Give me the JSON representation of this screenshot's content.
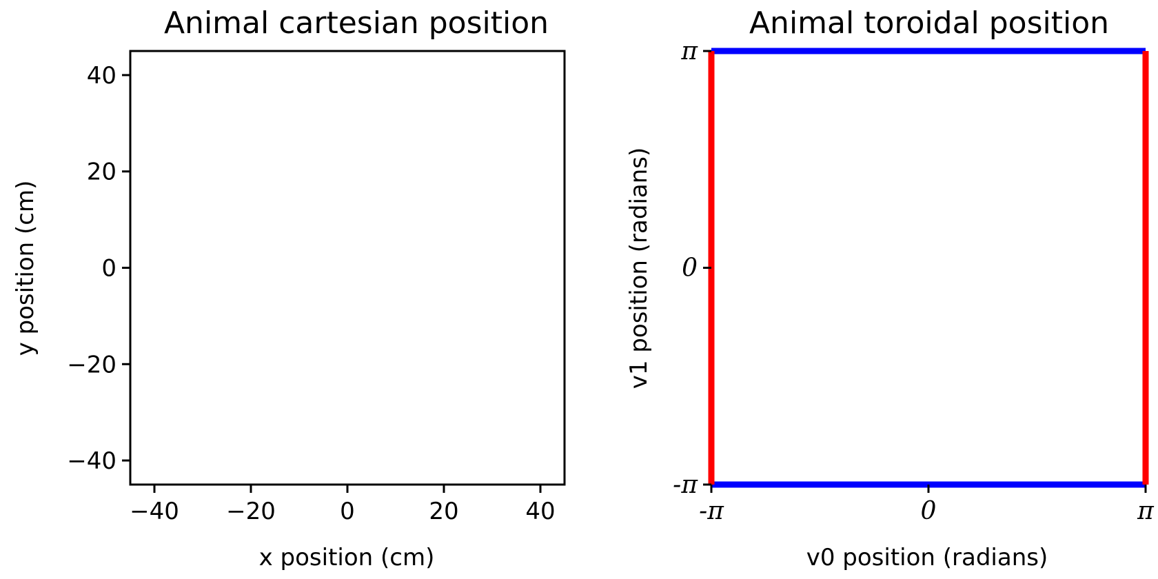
{
  "chart_data": [
    {
      "type": "line",
      "title": "Animal cartesian position",
      "xlabel": "x position (cm)",
      "ylabel": "y position (cm)",
      "xlim": [
        -45,
        45
      ],
      "ylim": [
        -45,
        45
      ],
      "xticks": [
        -40,
        -20,
        0,
        20,
        40
      ],
      "yticks": [
        -40,
        -20,
        0,
        20,
        40
      ],
      "xtick_labels": [
        "−40",
        "−20",
        "0",
        "20",
        "40"
      ],
      "ytick_labels": [
        "−40",
        "−20",
        "0",
        "20",
        "40"
      ],
      "series": [],
      "grid": false
    },
    {
      "type": "line",
      "title": "Animal toroidal position",
      "xlabel": "v0 position (radians)",
      "ylabel": "v1 position (radians)",
      "xlim": [
        -3.14159,
        3.14159
      ],
      "ylim": [
        -3.14159,
        3.14159
      ],
      "xticks": [
        -3.14159,
        0,
        3.14159
      ],
      "yticks": [
        -3.14159,
        0,
        3.14159
      ],
      "xtick_labels": [
        "-π",
        "0",
        "π"
      ],
      "ytick_labels": [
        "-π",
        "0",
        "π"
      ],
      "grid": false,
      "series": [
        {
          "color": "#0000ff",
          "x": [
            -3.14159,
            3.14159
          ],
          "y": [
            3.14159,
            3.14159
          ]
        },
        {
          "color": "#0000ff",
          "x": [
            -3.14159,
            3.14159
          ],
          "y": [
            -3.14159,
            -3.14159
          ]
        },
        {
          "color": "#ff0000",
          "x": [
            -3.14159,
            -3.14159
          ],
          "y": [
            -3.14159,
            3.14159
          ]
        },
        {
          "color": "#ff0000",
          "x": [
            3.14159,
            3.14159
          ],
          "y": [
            -3.14159,
            3.14159
          ]
        }
      ]
    }
  ]
}
